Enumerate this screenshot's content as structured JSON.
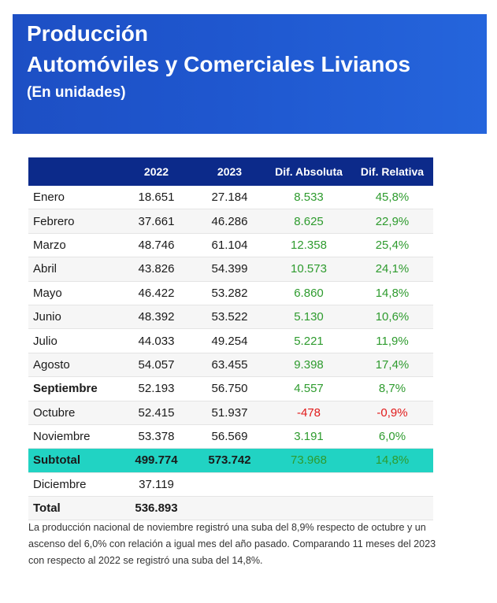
{
  "header": {
    "title_line1": "Producción",
    "title_line2": "Automóviles y Comerciales Livianos",
    "subtitle": "(En unidades)"
  },
  "table": {
    "columns": [
      "",
      "2022",
      "2023",
      "Dif. Absoluta",
      "Dif. Relativa"
    ],
    "rows": [
      {
        "label": "Enero",
        "y2022": "18.651",
        "y2023": "27.184",
        "abs": "8.533",
        "rel": "45,8%"
      },
      {
        "label": "Febrero",
        "y2022": "37.661",
        "y2023": "46.286",
        "abs": "8.625",
        "rel": "22,9%"
      },
      {
        "label": "Marzo",
        "y2022": "48.746",
        "y2023": "61.104",
        "abs": "12.358",
        "rel": "25,4%"
      },
      {
        "label": "Abril",
        "y2022": "43.826",
        "y2023": "54.399",
        "abs": "10.573",
        "rel": "24,1%"
      },
      {
        "label": "Mayo",
        "y2022": "46.422",
        "y2023": "53.282",
        "abs": "6.860",
        "rel": "14,8%"
      },
      {
        "label": "Junio",
        "y2022": "48.392",
        "y2023": "53.522",
        "abs": "5.130",
        "rel": "10,6%"
      },
      {
        "label": "Julio",
        "y2022": "44.033",
        "y2023": "49.254",
        "abs": "5.221",
        "rel": "11,9%"
      },
      {
        "label": "Agosto",
        "y2022": "54.057",
        "y2023": "63.455",
        "abs": "9.398",
        "rel": "17,4%"
      },
      {
        "label": "Septiembre",
        "y2022": "52.193",
        "y2023": "56.750",
        "abs": "4.557",
        "rel": "8,7%"
      },
      {
        "label": "Octubre",
        "y2022": "52.415",
        "y2023": "51.937",
        "abs": "-478",
        "rel": "-0,9%"
      },
      {
        "label": "Noviembre",
        "y2022": "53.378",
        "y2023": "56.569",
        "abs": "3.191",
        "rel": "6,0%"
      }
    ],
    "subtotal": {
      "label": "Subtotal",
      "y2022": "499.774",
      "y2023": "573.742",
      "abs": "73.968",
      "rel": "14,8%"
    },
    "december": {
      "label": "Diciembre",
      "y2022": "37.119"
    },
    "total": {
      "label": "Total",
      "y2022": "536.893"
    }
  },
  "colors": {
    "header_bg": "#1f57cf",
    "table_header_bg": "#0c2a8a",
    "subtotal_bg": "#21d3c3",
    "positive": "#2e9b2e",
    "negative": "#e11a1a"
  },
  "note": "La producción nacional de noviembre registró una suba del 8,9% respecto de octubre y un ascenso del 6,0% con relación a igual mes del año pasado. Comparando 11 meses del 2023 con respecto al 2022 se registró una suba del 14,8%."
}
